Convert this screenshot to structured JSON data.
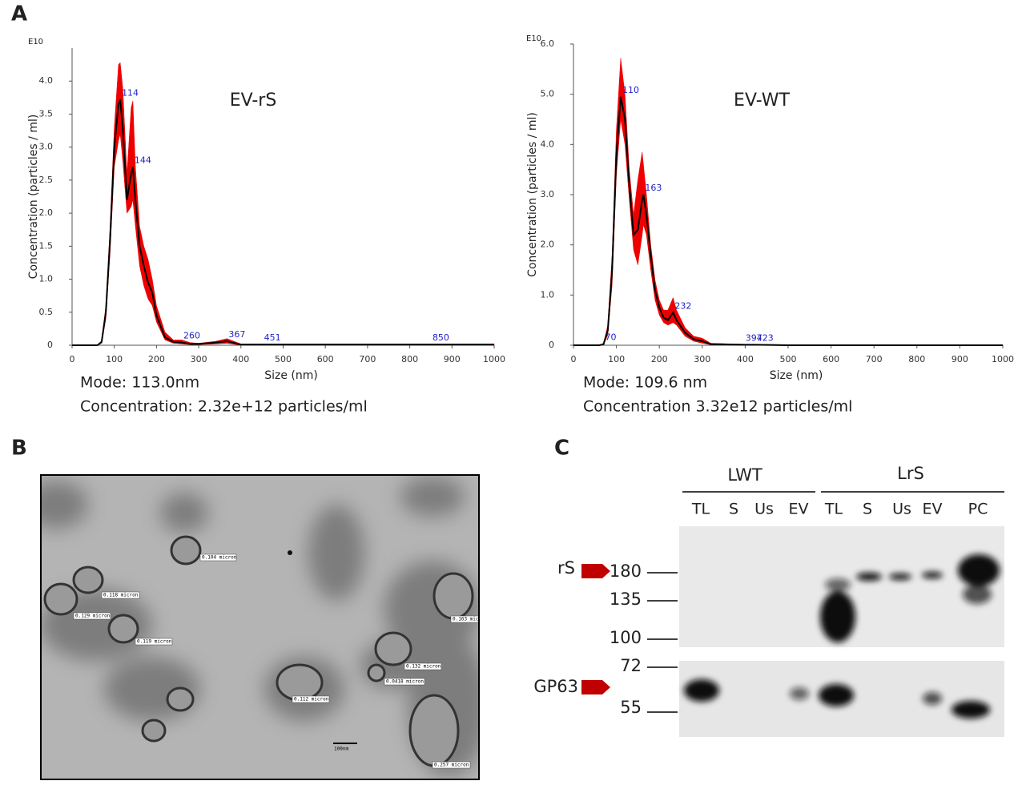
{
  "panels": {
    "a": "A",
    "b": "B",
    "c": "C"
  },
  "chart_data": [
    {
      "type": "line",
      "title": "EV-rS",
      "y_multiplier": "E10",
      "xlabel": "Size (nm)",
      "ylabel": "Concentration (particles / ml)",
      "notes": [
        "Mode: 113.0nm",
        "Concentration: 2.32e+12 particles/ml"
      ],
      "x": [
        0,
        50,
        60,
        70,
        80,
        90,
        100,
        110,
        114,
        120,
        130,
        140,
        144,
        150,
        160,
        170,
        180,
        190,
        200,
        220,
        240,
        260,
        280,
        300,
        340,
        367,
        400,
        451,
        500,
        600,
        700,
        800,
        850,
        900,
        1000
      ],
      "values": [
        0,
        0,
        0,
        0.05,
        0.5,
        1.6,
        3.0,
        3.65,
        3.72,
        3.3,
        2.2,
        2.6,
        2.7,
        2.2,
        1.5,
        1.2,
        0.95,
        0.8,
        0.45,
        0.12,
        0.05,
        0.04,
        0.02,
        0.02,
        0.04,
        0.06,
        0.01,
        0.01,
        0.01,
        0.01,
        0.01,
        0.01,
        0.01,
        0.01,
        0.01
      ],
      "band_high": [
        0,
        0,
        0,
        0.07,
        0.6,
        1.8,
        3.3,
        4.25,
        4.28,
        3.9,
        2.6,
        3.6,
        3.7,
        2.7,
        1.8,
        1.5,
        1.3,
        1.0,
        0.6,
        0.2,
        0.08,
        0.08,
        0.04,
        0.03,
        0.06,
        0.1,
        0.02,
        0.02,
        0.02,
        0.02,
        0.02,
        0.02,
        0.02,
        0.02,
        0.02
      ],
      "band_low": [
        0,
        0,
        0,
        0.03,
        0.4,
        1.4,
        2.7,
        3.1,
        3.2,
        2.8,
        2.0,
        2.1,
        2.2,
        1.8,
        1.2,
        0.9,
        0.7,
        0.6,
        0.35,
        0.08,
        0.03,
        0.02,
        0.01,
        0.01,
        0.02,
        0.03,
        0,
        0,
        0,
        0,
        0,
        0,
        0,
        0,
        0
      ],
      "peaks": [
        114,
        144,
        260,
        367,
        451,
        850
      ],
      "color": "#000000",
      "band_color": "#ee0000",
      "peak_color": "#2222cc",
      "xlim": [
        0,
        1000
      ],
      "xticks": [
        0,
        100,
        200,
        300,
        400,
        500,
        600,
        700,
        800,
        900,
        1000
      ],
      "ylim": [
        0,
        4.5
      ],
      "yticks": [
        0,
        0.5,
        {
          "value": 1,
          "label": "1.0"
        },
        1.5,
        {
          "value": 2,
          "label": "2.0"
        },
        2.5,
        {
          "value": 3,
          "label": "3.0"
        },
        3.5,
        {
          "value": 4,
          "label": "4.0"
        }
      ]
    },
    {
      "type": "line",
      "title": "EV-WT",
      "y_multiplier": "E10",
      "xlabel": "Size (nm)",
      "ylabel": "Concentration (particles / ml)",
      "notes": [
        "Mode: 109.6 nm",
        "Concentration 3.32e12 particles/ml"
      ],
      "x": [
        0,
        50,
        60,
        70,
        80,
        90,
        100,
        110,
        120,
        130,
        140,
        150,
        160,
        163,
        170,
        180,
        190,
        200,
        210,
        220,
        232,
        240,
        260,
        280,
        300,
        320,
        397,
        423,
        500,
        600,
        700,
        800,
        900,
        1000
      ],
      "values": [
        0,
        0,
        0,
        0.02,
        0.3,
        1.5,
        3.8,
        4.95,
        4.5,
        3.2,
        2.2,
        2.3,
        2.9,
        3.0,
        2.6,
        1.8,
        1.1,
        0.75,
        0.55,
        0.5,
        0.65,
        0.5,
        0.25,
        0.12,
        0.08,
        0.02,
        0.01,
        0.01,
        0,
        0,
        0,
        0,
        0,
        0
      ],
      "band_high": [
        0,
        0,
        0,
        0.04,
        0.4,
        1.8,
        4.3,
        5.72,
        5.0,
        3.5,
        2.6,
        3.3,
        3.85,
        3.6,
        3.0,
        2.0,
        1.3,
        0.9,
        0.7,
        0.7,
        0.95,
        0.7,
        0.35,
        0.18,
        0.14,
        0.04,
        0.02,
        0.02,
        0.01,
        0,
        0,
        0,
        0,
        0
      ],
      "band_low": [
        0,
        0,
        0,
        0.01,
        0.2,
        1.2,
        3.4,
        4.5,
        4.0,
        2.9,
        1.9,
        1.6,
        2.2,
        2.4,
        2.2,
        1.5,
        0.9,
        0.6,
        0.45,
        0.4,
        0.45,
        0.4,
        0.18,
        0.08,
        0.04,
        0.01,
        0,
        0,
        0,
        0,
        0,
        0,
        0,
        0
      ],
      "peaks": [
        70,
        110,
        163,
        232,
        397,
        423
      ],
      "color": "#000000",
      "band_color": "#ee0000",
      "peak_color": "#2222cc",
      "xlim": [
        0,
        1000
      ],
      "xticks": [
        0,
        100,
        200,
        300,
        400,
        500,
        600,
        700,
        800,
        900,
        1000
      ],
      "ylim": [
        0,
        6
      ],
      "yticks": [
        0,
        {
          "value": 1,
          "label": "1.0"
        },
        {
          "value": 2,
          "label": "2.0"
        },
        {
          "value": 3,
          "label": "3.0"
        },
        {
          "value": 4,
          "label": "4.0"
        },
        {
          "value": 5,
          "label": "5.0"
        },
        {
          "value": 6,
          "label": "6.0"
        }
      ]
    }
  ],
  "micrograph": {
    "labels": [
      "0.104 micron",
      "0.118 micron",
      "0.129 micron",
      "0.119 micron",
      "0.163 mic",
      "0.132 micron",
      "0.0418 micron",
      "0.112 micron",
      "0.257 micron"
    ],
    "scale_bar": "100nm"
  },
  "blot": {
    "groups": [
      "LWT",
      "LrS"
    ],
    "lanes": [
      "TL",
      "S",
      "Us",
      "EV",
      "TL",
      "S",
      "Us",
      "EV",
      "PC"
    ],
    "markers": [
      180,
      135,
      100,
      72,
      55
    ],
    "proteins": [
      "rS",
      "GP63"
    ]
  }
}
